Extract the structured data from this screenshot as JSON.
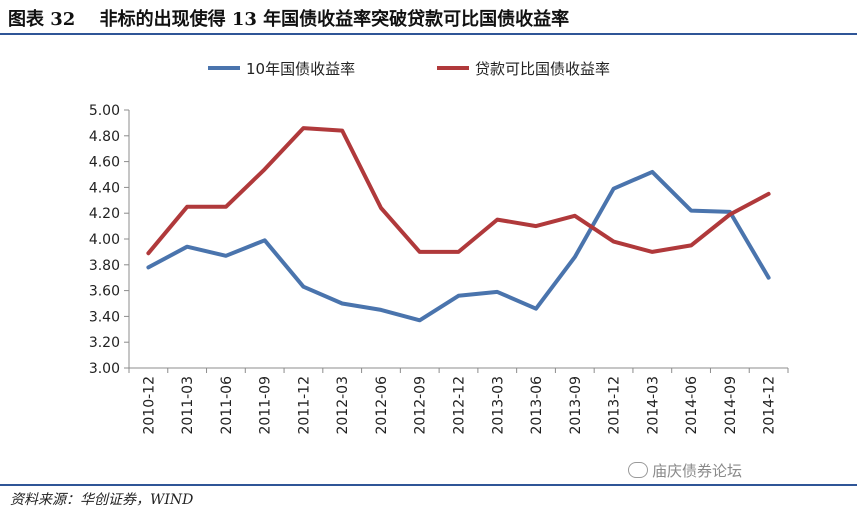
{
  "figure_title": "图表 32　 非标的出现使得 13 年国债收益率突破贷款可比国债收益率",
  "source_note": "资料来源：华创证券，WIND",
  "watermark": "庙庆债券论坛",
  "colors": {
    "accent": "#2f5597",
    "series_blue": "#4a74ad",
    "series_red": "#b0393b"
  },
  "chart_data": {
    "type": "line",
    "title": "",
    "xlabel": "",
    "ylabel": "",
    "legend_position": "top",
    "grid": false,
    "ylim": [
      3.0,
      5.0
    ],
    "yticks": [
      "3.00",
      "3.20",
      "3.40",
      "3.60",
      "3.80",
      "4.00",
      "4.20",
      "4.40",
      "4.60",
      "4.80",
      "5.00"
    ],
    "categories": [
      "2010-12",
      "2011-03",
      "2011-06",
      "2011-09",
      "2011-12",
      "2012-03",
      "2012-06",
      "2012-09",
      "2012-12",
      "2013-03",
      "2013-06",
      "2013-09",
      "2013-12",
      "2014-03",
      "2014-06",
      "2014-09",
      "2014-12"
    ],
    "series": [
      {
        "name": "10年国债收益率",
        "color": "#4a74ad",
        "values": [
          3.78,
          3.94,
          3.87,
          3.99,
          3.63,
          3.5,
          3.45,
          3.37,
          3.56,
          3.59,
          3.46,
          3.86,
          4.39,
          4.52,
          4.22,
          4.21,
          3.7
        ]
      },
      {
        "name": "贷款可比国债收益率",
        "color": "#b0393b",
        "values": [
          3.89,
          4.25,
          4.25,
          4.54,
          4.86,
          4.84,
          4.24,
          3.9,
          3.9,
          4.15,
          4.1,
          4.18,
          3.98,
          3.9,
          3.95,
          4.19,
          4.35
        ]
      }
    ]
  }
}
